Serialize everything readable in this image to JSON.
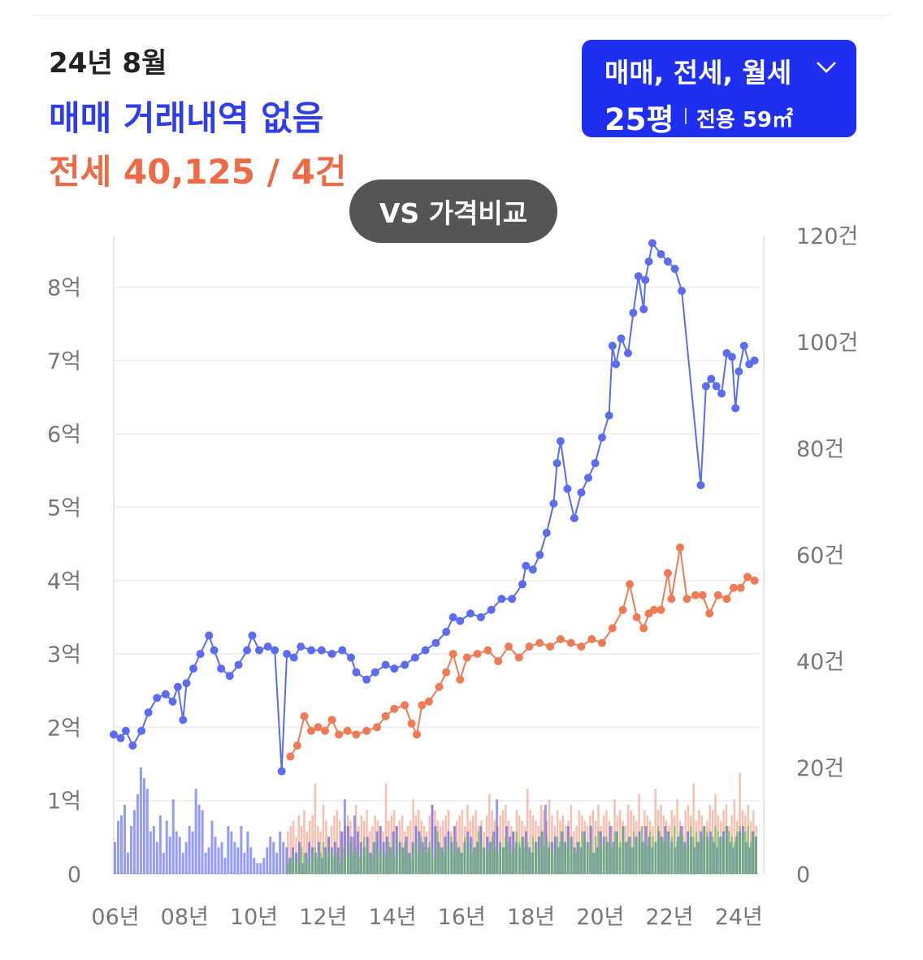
{
  "header": {
    "date": "24년 8월",
    "sale_status": "매매 거래내역 없음",
    "jeonse_summary": "전세 40,125 / 4건"
  },
  "filter": {
    "types": "매매, 전세, 월세",
    "pyeong": "25평",
    "area": "전용 59㎡"
  },
  "compare_button": "VS 가격비교",
  "colors": {
    "sale": "#5a6cf0",
    "jeonse": "#ef7b55",
    "sale_bar": "#3a4cf0",
    "jeonse_bar": "#f28a6e",
    "monthly_bar": "#56c047"
  },
  "chart_data": {
    "type": "line",
    "left_axis": {
      "ticks": [
        0,
        1,
        2,
        3,
        4,
        5,
        6,
        7,
        8
      ],
      "tick_labels": [
        "0",
        "1억",
        "2억",
        "3억",
        "4억",
        "5억",
        "6억",
        "7억",
        "8억"
      ],
      "unit_max": 8.8
    },
    "right_axis": {
      "ticks": [
        0,
        20,
        40,
        60,
        80,
        100,
        120
      ],
      "tick_labels": [
        "0",
        "20건",
        "40건",
        "60건",
        "80건",
        "100건",
        "120건"
      ],
      "max": 120
    },
    "x_axis": {
      "range": [
        2006.0,
        2024.65
      ],
      "tick_values": [
        2006,
        2008,
        2010,
        2012,
        2014,
        2016,
        2018,
        2020,
        2022,
        2024
      ],
      "tick_labels": [
        "06년",
        "08년",
        "10년",
        "12년",
        "14년",
        "16년",
        "18년",
        "20년",
        "22년",
        "24년"
      ]
    },
    "series": [
      {
        "key": "sale",
        "points": [
          [
            2006.0,
            1.9
          ],
          [
            2006.2,
            1.85
          ],
          [
            2006.35,
            1.95
          ],
          [
            2006.55,
            1.75
          ],
          [
            2006.8,
            1.95
          ],
          [
            2007.0,
            2.2
          ],
          [
            2007.25,
            2.4
          ],
          [
            2007.5,
            2.45
          ],
          [
            2007.7,
            2.35
          ],
          [
            2007.85,
            2.55
          ],
          [
            2008.0,
            2.1
          ],
          [
            2008.1,
            2.6
          ],
          [
            2008.3,
            2.8
          ],
          [
            2008.5,
            3.0
          ],
          [
            2008.75,
            3.25
          ],
          [
            2008.9,
            3.05
          ],
          [
            2009.1,
            2.8
          ],
          [
            2009.35,
            2.7
          ],
          [
            2009.6,
            2.85
          ],
          [
            2009.85,
            3.05
          ],
          [
            2010.0,
            3.25
          ],
          [
            2010.2,
            3.05
          ],
          [
            2010.45,
            3.1
          ],
          [
            2010.65,
            3.05
          ],
          [
            2010.85,
            1.4
          ],
          [
            2011.0,
            3.0
          ],
          [
            2011.2,
            2.95
          ],
          [
            2011.4,
            3.1
          ],
          [
            2011.7,
            3.05
          ],
          [
            2012.0,
            3.05
          ],
          [
            2012.3,
            3.0
          ],
          [
            2012.6,
            3.05
          ],
          [
            2012.85,
            2.95
          ],
          [
            2013.0,
            2.75
          ],
          [
            2013.3,
            2.65
          ],
          [
            2013.55,
            2.75
          ],
          [
            2013.85,
            2.85
          ],
          [
            2014.1,
            2.8
          ],
          [
            2014.4,
            2.85
          ],
          [
            2014.7,
            2.95
          ],
          [
            2015.0,
            3.05
          ],
          [
            2015.3,
            3.15
          ],
          [
            2015.6,
            3.3
          ],
          [
            2015.8,
            3.5
          ],
          [
            2016.0,
            3.45
          ],
          [
            2016.3,
            3.55
          ],
          [
            2016.6,
            3.5
          ],
          [
            2016.9,
            3.6
          ],
          [
            2017.2,
            3.75
          ],
          [
            2017.5,
            3.75
          ],
          [
            2017.8,
            3.95
          ],
          [
            2017.9,
            4.2
          ],
          [
            2018.1,
            4.15
          ],
          [
            2018.3,
            4.35
          ],
          [
            2018.5,
            4.65
          ],
          [
            2018.7,
            5.05
          ],
          [
            2018.8,
            5.6
          ],
          [
            2018.9,
            5.9
          ],
          [
            2019.1,
            5.25
          ],
          [
            2019.3,
            4.85
          ],
          [
            2019.5,
            5.2
          ],
          [
            2019.7,
            5.4
          ],
          [
            2019.9,
            5.6
          ],
          [
            2020.1,
            5.95
          ],
          [
            2020.3,
            6.25
          ],
          [
            2020.4,
            7.2
          ],
          [
            2020.5,
            6.95
          ],
          [
            2020.65,
            7.3
          ],
          [
            2020.85,
            7.1
          ],
          [
            2021.0,
            7.65
          ],
          [
            2021.15,
            8.15
          ],
          [
            2021.3,
            7.7
          ],
          [
            2021.35,
            8.1
          ],
          [
            2021.45,
            8.35
          ],
          [
            2021.55,
            8.6
          ],
          [
            2021.8,
            8.45
          ],
          [
            2022.0,
            8.35
          ],
          [
            2022.2,
            8.25
          ],
          [
            2022.4,
            7.95
          ],
          [
            2022.95,
            5.3
          ],
          [
            2023.1,
            6.65
          ],
          [
            2023.25,
            6.75
          ],
          [
            2023.4,
            6.65
          ],
          [
            2023.55,
            6.55
          ],
          [
            2023.7,
            7.1
          ],
          [
            2023.85,
            7.05
          ],
          [
            2023.95,
            6.35
          ],
          [
            2024.05,
            6.85
          ],
          [
            2024.2,
            7.2
          ],
          [
            2024.35,
            6.95
          ],
          [
            2024.5,
            7.0
          ]
        ]
      },
      {
        "key": "jeonse",
        "points": [
          [
            2011.1,
            1.6
          ],
          [
            2011.3,
            1.75
          ],
          [
            2011.5,
            2.15
          ],
          [
            2011.7,
            1.95
          ],
          [
            2011.9,
            2.0
          ],
          [
            2012.1,
            1.95
          ],
          [
            2012.3,
            2.1
          ],
          [
            2012.5,
            1.9
          ],
          [
            2012.75,
            1.95
          ],
          [
            2013.0,
            1.9
          ],
          [
            2013.3,
            1.95
          ],
          [
            2013.6,
            2.0
          ],
          [
            2013.85,
            2.15
          ],
          [
            2014.1,
            2.25
          ],
          [
            2014.4,
            2.3
          ],
          [
            2014.6,
            2.05
          ],
          [
            2014.75,
            1.9
          ],
          [
            2014.9,
            2.3
          ],
          [
            2015.1,
            2.35
          ],
          [
            2015.4,
            2.55
          ],
          [
            2015.6,
            2.75
          ],
          [
            2015.8,
            3.0
          ],
          [
            2016.0,
            2.65
          ],
          [
            2016.2,
            2.95
          ],
          [
            2016.5,
            3.0
          ],
          [
            2016.8,
            3.05
          ],
          [
            2017.1,
            2.9
          ],
          [
            2017.4,
            3.1
          ],
          [
            2017.7,
            2.95
          ],
          [
            2018.0,
            3.1
          ],
          [
            2018.3,
            3.15
          ],
          [
            2018.6,
            3.1
          ],
          [
            2018.9,
            3.2
          ],
          [
            2019.2,
            3.15
          ],
          [
            2019.5,
            3.1
          ],
          [
            2019.8,
            3.2
          ],
          [
            2020.1,
            3.15
          ],
          [
            2020.4,
            3.35
          ],
          [
            2020.7,
            3.6
          ],
          [
            2020.9,
            3.95
          ],
          [
            2021.1,
            3.5
          ],
          [
            2021.3,
            3.35
          ],
          [
            2021.45,
            3.55
          ],
          [
            2021.6,
            3.6
          ],
          [
            2021.8,
            3.6
          ],
          [
            2022.0,
            4.1
          ],
          [
            2022.1,
            3.75
          ],
          [
            2022.35,
            4.45
          ],
          [
            2022.55,
            3.75
          ],
          [
            2022.8,
            3.8
          ],
          [
            2023.0,
            3.8
          ],
          [
            2023.2,
            3.55
          ],
          [
            2023.45,
            3.8
          ],
          [
            2023.7,
            3.75
          ],
          [
            2023.9,
            3.9
          ],
          [
            2024.1,
            3.9
          ],
          [
            2024.3,
            4.05
          ],
          [
            2024.5,
            4.0
          ]
        ]
      }
    ],
    "volume_bars": {
      "sale_counts": [
        6,
        10,
        11,
        13,
        4,
        9,
        12,
        15,
        20,
        18,
        16,
        8,
        9,
        6,
        11,
        4,
        10,
        7,
        14,
        8,
        7,
        4,
        6,
        9,
        8,
        16,
        13,
        12,
        4,
        5,
        10,
        7,
        5,
        6,
        3,
        9,
        8,
        6,
        5,
        9,
        4,
        8,
        5,
        3,
        2,
        2,
        3,
        5,
        7,
        6,
        4,
        8,
        6,
        5,
        3,
        5,
        4,
        6,
        2,
        4,
        6,
        5,
        4,
        6,
        3,
        5,
        7,
        5,
        6,
        5,
        8,
        14,
        9,
        7,
        11,
        8,
        6,
        5,
        7,
        4,
        6,
        8,
        9,
        6,
        7,
        5,
        8,
        9,
        6,
        5,
        7,
        4,
        6,
        9,
        8,
        6,
        7,
        5,
        13,
        9,
        6,
        5,
        7,
        8,
        6,
        9,
        5,
        4,
        6,
        8,
        7,
        5,
        6,
        9,
        5,
        7,
        6,
        8,
        14,
        6,
        5,
        9,
        7,
        8,
        6,
        5,
        7,
        8,
        5,
        4,
        6,
        7,
        8,
        13,
        5,
        6,
        7,
        5,
        8,
        6,
        9,
        7,
        5,
        6,
        5,
        8,
        6,
        9,
        4,
        5,
        8,
        7,
        6,
        9,
        6,
        8,
        5,
        9,
        6,
        7,
        5,
        7,
        8,
        6,
        9,
        7,
        5,
        6,
        8,
        7,
        9,
        8,
        6,
        5,
        7,
        9,
        6,
        8,
        7,
        5,
        6,
        8,
        9,
        7,
        8,
        6,
        5,
        7,
        8,
        9,
        6,
        5,
        7,
        8,
        9,
        6,
        5,
        8,
        7
      ],
      "jeonse_counts": [
        8,
        9,
        10,
        7,
        11,
        9,
        12,
        8,
        10,
        11,
        17,
        9,
        8,
        13,
        10,
        7,
        9,
        11,
        12,
        10,
        8,
        9,
        11,
        10,
        7,
        13,
        9,
        11,
        10,
        12,
        8,
        9,
        11,
        10,
        9,
        8,
        17,
        10,
        11,
        12,
        9,
        10,
        11,
        8,
        9,
        10,
        14,
        11,
        12,
        10,
        9,
        8,
        11,
        13,
        12,
        10,
        9,
        10,
        11,
        12,
        8,
        9,
        10,
        11,
        12,
        9,
        13,
        10,
        11,
        12,
        9,
        10,
        8,
        11,
        15,
        12,
        10,
        9,
        11,
        12,
        13,
        10,
        9,
        8,
        12,
        11,
        10,
        9,
        16,
        12,
        11,
        10,
        9,
        13,
        12,
        10,
        14,
        11,
        9,
        12,
        10,
        11,
        9,
        10,
        13,
        8,
        9,
        12,
        11,
        10,
        9,
        11,
        12,
        10,
        13,
        9,
        11,
        12,
        10,
        9,
        14,
        11,
        12,
        10,
        9,
        13,
        12,
        11,
        10,
        15,
        9,
        12,
        11,
        10,
        9,
        16,
        12,
        13,
        11,
        10,
        9,
        12,
        11,
        14,
        10,
        9,
        12,
        13,
        11,
        17,
        10,
        12,
        11,
        9,
        10,
        13,
        12,
        15,
        11,
        10,
        12,
        13,
        9,
        11,
        14,
        10,
        19,
        12,
        11,
        13,
        10,
        12,
        9
      ],
      "monthly_counts": [
        2,
        3,
        4,
        2,
        3,
        5,
        4,
        3,
        2,
        4,
        5,
        3,
        4,
        6,
        3,
        4,
        5,
        3,
        4,
        2,
        5,
        3,
        4,
        6,
        4,
        5,
        3,
        4,
        7,
        5,
        4,
        3,
        6,
        4,
        5,
        3,
        4,
        6,
        5,
        3,
        7,
        4,
        5,
        6,
        4,
        3,
        5,
        6,
        4,
        7,
        5,
        4,
        6,
        5,
        3,
        8,
        5,
        4,
        6,
        5,
        7,
        4,
        6,
        5,
        4,
        7,
        5,
        6,
        4,
        5,
        8,
        6,
        5,
        4,
        6,
        7,
        5,
        4,
        6,
        5,
        7,
        6,
        4,
        5,
        8,
        6,
        7,
        5,
        6,
        4,
        7,
        5,
        6,
        8,
        5,
        7,
        6,
        5,
        4,
        7,
        6,
        8,
        5,
        6,
        7,
        5,
        4,
        6,
        8,
        7,
        5,
        6,
        4,
        7,
        8,
        5,
        6,
        7,
        6,
        5,
        8,
        7,
        6,
        9,
        6,
        7,
        5,
        8,
        6,
        7,
        9,
        6,
        5,
        8,
        7,
        6,
        9,
        7,
        6,
        8,
        5,
        7,
        9,
        6,
        8,
        7,
        5,
        6,
        9,
        7,
        8,
        6,
        7,
        9,
        8,
        6,
        7,
        9,
        8,
        7,
        6,
        9,
        8,
        7,
        6,
        8,
        9,
        7,
        8,
        9,
        6,
        8,
        7
      ]
    }
  }
}
